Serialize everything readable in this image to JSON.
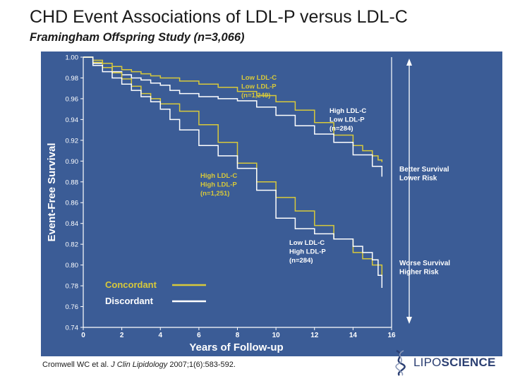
{
  "slide": {
    "title": "CHD Event Associations of LDL-P versus LDL-C",
    "subtitle": "Framingham Offspring Study (n=3,066)"
  },
  "citation": {
    "authors": "Cromwell WC et al.",
    "journal": "J Clin Lipidology",
    "ref": "2007;1(6):583-592."
  },
  "logo": {
    "prefix": "LIPO",
    "suffix": "SCIENCE"
  },
  "colors": {
    "panel": "#3b5c96",
    "concordant": "#d8c93a",
    "discordant": "#ffffff",
    "axis": "#ffffff"
  },
  "chart_data": {
    "type": "line",
    "title": "CHD Event Associations of LDL-P versus LDL-C",
    "xlabel": "Years of Follow-up",
    "ylabel": "Event-Free Survival",
    "xlim": [
      0,
      16
    ],
    "ylim": [
      0.74,
      1.0
    ],
    "xticks": [
      "0",
      "2",
      "4",
      "6",
      "8",
      "10",
      "12",
      "14",
      "16"
    ],
    "yticks": [
      "1.00",
      "0.98",
      "0.96",
      "0.94",
      "0.92",
      "0.90",
      "0.88",
      "0.86",
      "0.84",
      "0.82",
      "0.80",
      "0.78",
      "0.76",
      "0.74"
    ],
    "legend": [
      {
        "label": "Concordant",
        "color": "#d8c93a"
      },
      {
        "label": "Discordant",
        "color": "#ffffff"
      }
    ],
    "series": [
      {
        "group": "concordant",
        "color": "#d8c93a",
        "label_lines": [
          "Low LDL-C",
          "Low LDL-P",
          "(n=1,249)"
        ],
        "x": [
          0,
          0.5,
          1,
          1.5,
          2,
          2.5,
          3,
          3.5,
          4,
          5,
          6,
          7,
          8,
          9,
          10,
          11,
          12,
          13,
          14,
          14.5,
          15,
          15.3,
          15.5
        ],
        "y": [
          1.0,
          0.997,
          0.994,
          0.991,
          0.988,
          0.986,
          0.984,
          0.982,
          0.98,
          0.977,
          0.974,
          0.971,
          0.967,
          0.963,
          0.957,
          0.949,
          0.937,
          0.925,
          0.915,
          0.91,
          0.905,
          0.901,
          0.899
        ]
      },
      {
        "group": "discordant",
        "color": "#ffffff",
        "label_lines": [
          "High LDL-C",
          "Low LDL-P",
          "(n=284)"
        ],
        "x": [
          0,
          0.5,
          1,
          1.5,
          2,
          2.5,
          3,
          3.5,
          4,
          4.5,
          5,
          6,
          7,
          8,
          9,
          10,
          11,
          12,
          13,
          14,
          15,
          15.5
        ],
        "y": [
          1.0,
          0.994,
          0.99,
          0.986,
          0.983,
          0.98,
          0.978,
          0.975,
          0.973,
          0.968,
          0.965,
          0.962,
          0.96,
          0.958,
          0.952,
          0.944,
          0.934,
          0.926,
          0.918,
          0.906,
          0.895,
          0.885
        ]
      },
      {
        "group": "concordant",
        "color": "#d8c93a",
        "label_lines": [
          "High LDL-C",
          "High LDL-P",
          "(n=1,251)"
        ],
        "x": [
          0,
          0.5,
          1,
          1.5,
          2,
          2.5,
          3,
          3.5,
          4,
          5,
          6,
          7,
          8,
          9,
          10,
          11,
          12,
          13,
          14,
          14.5,
          15,
          15.5
        ],
        "y": [
          1.0,
          0.995,
          0.99,
          0.985,
          0.979,
          0.972,
          0.965,
          0.96,
          0.955,
          0.948,
          0.935,
          0.918,
          0.898,
          0.88,
          0.865,
          0.852,
          0.838,
          0.825,
          0.812,
          0.806,
          0.8,
          0.79
        ]
      },
      {
        "group": "discordant",
        "color": "#ffffff",
        "label_lines": [
          "Low LDL-C",
          "High LDL-P",
          "(n=284)"
        ],
        "x": [
          0,
          0.5,
          1,
          1.5,
          2,
          2.5,
          3,
          3.5,
          4,
          4.5,
          5,
          6,
          7,
          8,
          9,
          10,
          11,
          12,
          13,
          14,
          14.5,
          15,
          15.3,
          15.5
        ],
        "y": [
          1.0,
          0.992,
          0.986,
          0.98,
          0.974,
          0.968,
          0.962,
          0.957,
          0.95,
          0.94,
          0.93,
          0.915,
          0.905,
          0.893,
          0.872,
          0.845,
          0.835,
          0.83,
          0.825,
          0.818,
          0.812,
          0.805,
          0.79,
          0.778
        ]
      }
    ],
    "annotations": {
      "better": [
        "Better Survival",
        "Lower Risk"
      ],
      "worse": [
        "Worse Survival",
        "Higher Risk"
      ]
    }
  }
}
